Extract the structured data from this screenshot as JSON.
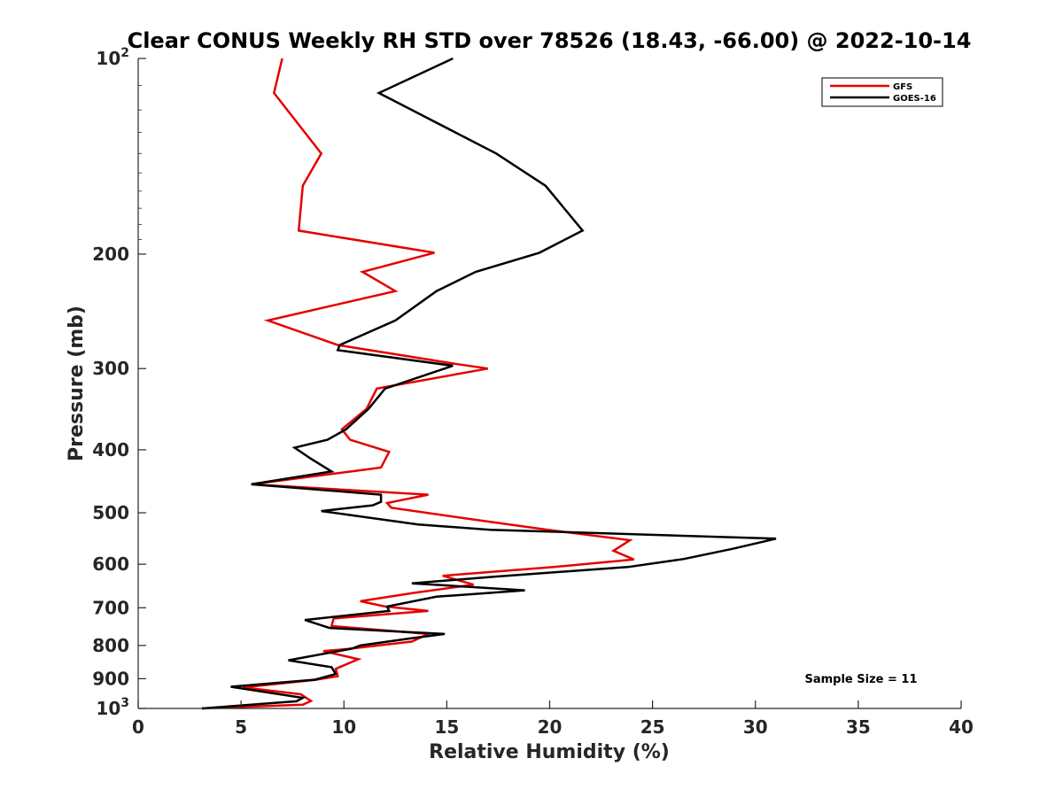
{
  "chart_data": {
    "type": "line",
    "title": "Clear CONUS Weekly RH STD over 78526 (18.43, -66.00) @ 2022-10-14",
    "xlabel": "Relative Humidity (%)",
    "ylabel": "Pressure (mb)",
    "xlim": [
      0,
      40
    ],
    "ylim": [
      100,
      1000
    ],
    "y_scale": "log",
    "y_reversed": true,
    "grid": false,
    "legend_position": "top-right",
    "x_ticks": [
      "0",
      "5",
      "10",
      "15",
      "20",
      "25",
      "30",
      "35",
      "40"
    ],
    "y_ticks": [
      {
        "value": 100,
        "base": "10",
        "exp": "2"
      },
      {
        "value": 200,
        "label": "200"
      },
      {
        "value": 300,
        "label": "300"
      },
      {
        "value": 400,
        "label": "400"
      },
      {
        "value": 500,
        "label": "500"
      },
      {
        "value": 600,
        "label": "600"
      },
      {
        "value": 700,
        "label": "700"
      },
      {
        "value": 800,
        "label": "800"
      },
      {
        "value": 900,
        "label": "900"
      },
      {
        "value": 1000,
        "base": "10",
        "exp": "3"
      }
    ],
    "annotation": "Sample Size = 11",
    "series": [
      {
        "name": "GFS",
        "color": "#e60000",
        "x": [
          7.0,
          6.6,
          8.9,
          8.0,
          7.8,
          14.4,
          10.9,
          12.5,
          6.3,
          9.7,
          15.4,
          17.0,
          11.6,
          11.1,
          9.9,
          10.3,
          12.2,
          11.8,
          5.5,
          14.1,
          12.1,
          12.3,
          16.1,
          19.9,
          23.9,
          23.1,
          24.1,
          20.2,
          14.8,
          16.3,
          13.4,
          10.8,
          12.0,
          14.1,
          9.5,
          9.4,
          14.1,
          13.3,
          10.2,
          9.0,
          10.7,
          9.6,
          9.7,
          8.6,
          5.1,
          7.9,
          8.4,
          8.0,
          3.1
        ],
        "y": [
          100,
          113,
          140,
          157,
          184,
          199,
          213,
          228,
          253,
          276,
          295,
          300,
          322,
          346,
          372,
          386,
          403,
          426,
          452,
          469,
          483,
          491,
          511,
          531,
          551,
          572,
          590,
          606,
          625,
          645,
          664,
          684,
          697,
          708,
          727,
          747,
          768,
          789,
          810,
          816,
          840,
          869,
          892,
          904,
          928,
          951,
          974,
          987,
          1000
        ]
      },
      {
        "name": "GOES-16",
        "color": "#000000",
        "x": [
          15.3,
          11.7,
          17.4,
          19.8,
          21.6,
          19.5,
          16.4,
          14.5,
          12.5,
          9.8,
          9.7,
          15.3,
          12.0,
          11.2,
          10.1,
          9.2,
          7.6,
          8.4,
          9.4,
          5.5,
          11.8,
          11.8,
          11.4,
          8.9,
          13.6,
          17.1,
          31.0,
          28.9,
          26.5,
          23.8,
          17.3,
          13.3,
          18.8,
          14.5,
          12.1,
          12.2,
          8.1,
          9.3,
          14.9,
          13.4,
          10.8,
          10.4,
          7.3,
          9.4,
          9.6,
          8.6,
          4.5,
          8.0,
          7.7,
          3.1
        ],
        "y": [
          100,
          113,
          140,
          157,
          184,
          199,
          213,
          228,
          253,
          276,
          281,
          297,
          322,
          346,
          372,
          386,
          397,
          413,
          432,
          452,
          469,
          481,
          487,
          497,
          521,
          531,
          548,
          568,
          589,
          606,
          627,
          642,
          658,
          673,
          697,
          708,
          731,
          752,
          768,
          779,
          800,
          809,
          843,
          864,
          885,
          903,
          926,
          963,
          975,
          1000
        ]
      }
    ]
  }
}
